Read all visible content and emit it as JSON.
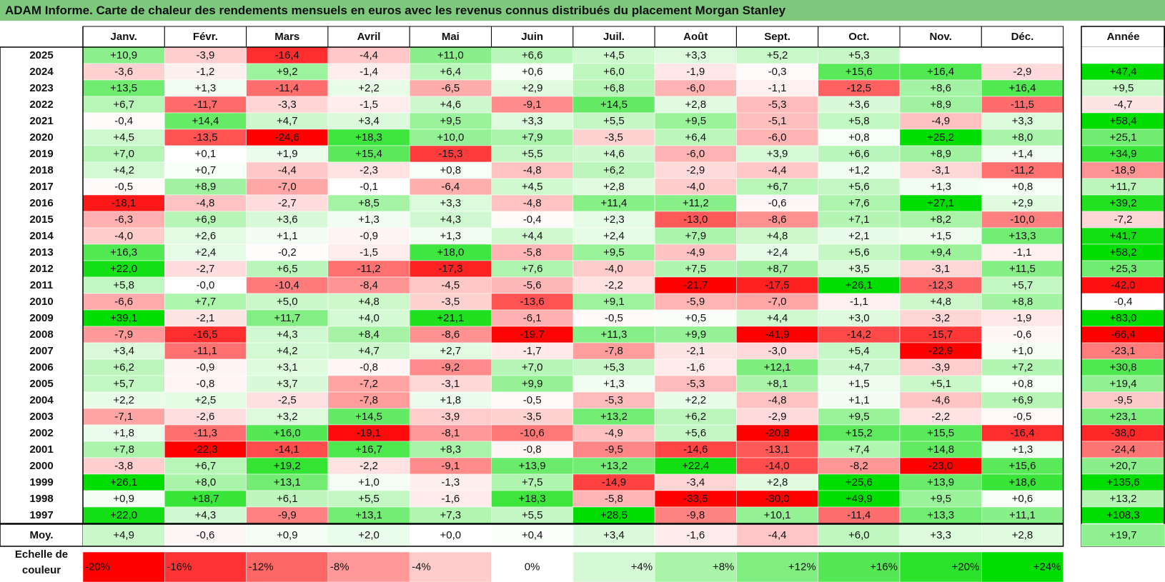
{
  "title": "ADAM Informe. Carte de chaleur des rendements mensuels en euros avec les revenus connus distribués du placement Morgan Stanley",
  "chart_data": {
    "type": "heatmap",
    "title": "ADAM Informe. Carte de chaleur des rendements mensuels en euros avec les revenus connus distribués du placement Morgan Stanley",
    "columns": [
      "Janv.",
      "Févr.",
      "Mars",
      "Avril",
      "Mai",
      "Juin",
      "Juil.",
      "Août",
      "Sept.",
      "Oct.",
      "Nov.",
      "Déc."
    ],
    "year_column_label": "Année",
    "rows": [
      {
        "year": "2025",
        "values": [
          "+10,9",
          "-3,9",
          "-16,4",
          "-4,4",
          "+11,0",
          "+6,6",
          "+4,5",
          "+3,3",
          "+5,2",
          "+5,3",
          "",
          ""
        ],
        "annual": ""
      },
      {
        "year": "2024",
        "values": [
          "-3,6",
          "-1,2",
          "+9,2",
          "-1,4",
          "+6,4",
          "+0,6",
          "+6,0",
          "-1,9",
          "-0,3",
          "+15,6",
          "+16,4",
          "-2,9"
        ],
        "annual": "+47,4"
      },
      {
        "year": "2023",
        "values": [
          "+13,5",
          "+1,3",
          "-11,4",
          "+2,2",
          "-6,5",
          "+2,9",
          "+6,8",
          "-6,0",
          "-1,1",
          "-12,5",
          "+8,6",
          "+16,4"
        ],
        "annual": "+9,5"
      },
      {
        "year": "2022",
        "values": [
          "+6,7",
          "-11,7",
          "-3,3",
          "-1,5",
          "+4,6",
          "-9,1",
          "+14,5",
          "+2,8",
          "-5,3",
          "+3,6",
          "+8,9",
          "-11,5"
        ],
        "annual": "-4,7"
      },
      {
        "year": "2021",
        "values": [
          "-0,4",
          "+14,4",
          "+4,7",
          "+3,4",
          "+9,5",
          "+3,3",
          "+5,5",
          "+9,5",
          "-5,1",
          "+5,8",
          "-4,9",
          "+3,3"
        ],
        "annual": "+58,4"
      },
      {
        "year": "2020",
        "values": [
          "+4,5",
          "-13,5",
          "-24,6",
          "+18,3",
          "+10,0",
          "+7,9",
          "-3,5",
          "+6,4",
          "-6,0",
          "+0,8",
          "+25,2",
          "+8,0"
        ],
        "annual": "+25,1"
      },
      {
        "year": "2019",
        "values": [
          "+7,0",
          "+0,1",
          "+1,9",
          "+15,4",
          "-15,3",
          "+5,5",
          "+4,6",
          "-6,0",
          "+3,9",
          "+6,6",
          "+8,9",
          "+1,4"
        ],
        "annual": "+34,9"
      },
      {
        "year": "2018",
        "values": [
          "+4,2",
          "+0,7",
          "-4,4",
          "-2,3",
          "+0,8",
          "-4,8",
          "+6,2",
          "-2,9",
          "-4,4",
          "+1,2",
          "-3,1",
          "-11,2"
        ],
        "annual": "-18,9"
      },
      {
        "year": "2017",
        "values": [
          "-0,5",
          "+8,9",
          "-7,0",
          "-0,1",
          "-6,4",
          "+4,5",
          "+2,8",
          "-4,0",
          "+6,7",
          "+5,6",
          "+1,3",
          "+0,8"
        ],
        "annual": "+11,7"
      },
      {
        "year": "2016",
        "values": [
          "-18,1",
          "-4,8",
          "-2,7",
          "+8,5",
          "+3,3",
          "-4,8",
          "+11,4",
          "+11,2",
          "-0,6",
          "+7,6",
          "+27,1",
          "+2,9"
        ],
        "annual": "+39,2"
      },
      {
        "year": "2015",
        "values": [
          "-6,3",
          "+6,9",
          "+3,6",
          "+1,3",
          "+4,3",
          "-0,4",
          "+2,3",
          "-13,0",
          "-8,6",
          "+7,1",
          "+8,2",
          "-10,0"
        ],
        "annual": "-7,2"
      },
      {
        "year": "2014",
        "values": [
          "-4,0",
          "+2,6",
          "+1,1",
          "-0,9",
          "+1,3",
          "+4,4",
          "+2,4",
          "+7,9",
          "+4,8",
          "+2,1",
          "+1,5",
          "+13,3"
        ],
        "annual": "+41,7"
      },
      {
        "year": "2013",
        "values": [
          "+16,3",
          "+2,4",
          "-0,2",
          "-1,5",
          "+18,0",
          "-5,8",
          "+9,5",
          "-4,9",
          "+2,4",
          "+5,6",
          "+9,4",
          "-1,1"
        ],
        "annual": "+58,2"
      },
      {
        "year": "2012",
        "values": [
          "+22,0",
          "-2,7",
          "+6,5",
          "-11,2",
          "-17,3",
          "+7,6",
          "-4,0",
          "+7,5",
          "+8,7",
          "+3,5",
          "-3,1",
          "+11,5"
        ],
        "annual": "+25,3"
      },
      {
        "year": "2011",
        "values": [
          "+5,8",
          "-0,0",
          "-10,4",
          "-8,4",
          "-4,5",
          "-5,6",
          "-2,2",
          "-21,7",
          "-17,5",
          "+26,1",
          "-12,3",
          "+5,7"
        ],
        "annual": "-42,0"
      },
      {
        "year": "2010",
        "values": [
          "-6,6",
          "+7,7",
          "+5,0",
          "+4,8",
          "-3,5",
          "-13,6",
          "+9,1",
          "-5,9",
          "-7,0",
          "-1,1",
          "+4,8",
          "+8,8"
        ],
        "annual": "-0,4"
      },
      {
        "year": "2009",
        "values": [
          "+39,1",
          "-2,1",
          "+11,7",
          "+4,0",
          "+21,1",
          "-6,1",
          "-0,5",
          "+0,5",
          "+4,4",
          "+3,0",
          "-3,2",
          "-1,9"
        ],
        "annual": "+83,0"
      },
      {
        "year": "2008",
        "values": [
          "-7,9",
          "-16,5",
          "+4,3",
          "+8,4",
          "-8,6",
          "-19,7",
          "+11,3",
          "+9,9",
          "-41,9",
          "-14,2",
          "-15,7",
          "-0,6"
        ],
        "annual": "-66,4"
      },
      {
        "year": "2007",
        "values": [
          "+3,4",
          "-11,1",
          "+4,2",
          "+4,7",
          "+2,7",
          "-1,7",
          "-7,8",
          "-2,1",
          "-3,0",
          "+5,4",
          "-22,9",
          "+1,0"
        ],
        "annual": "-23,1"
      },
      {
        "year": "2006",
        "values": [
          "+6,2",
          "-0,9",
          "+3,1",
          "-0,8",
          "-9,2",
          "+7,0",
          "+5,3",
          "-1,6",
          "+12,1",
          "+4,7",
          "-3,9",
          "+7,2"
        ],
        "annual": "+30,8"
      },
      {
        "year": "2005",
        "values": [
          "+5,7",
          "-0,8",
          "+3,7",
          "-7,2",
          "-3,1",
          "+9,9",
          "+1,3",
          "-5,3",
          "+8,1",
          "+1,5",
          "+5,1",
          "+0,8"
        ],
        "annual": "+19,4"
      },
      {
        "year": "2004",
        "values": [
          "+2,2",
          "+2,5",
          "-2,5",
          "-7,8",
          "+1,8",
          "-0,5",
          "-5,3",
          "+2,2",
          "-4,8",
          "+1,1",
          "-4,6",
          "+6,9"
        ],
        "annual": "-9,5"
      },
      {
        "year": "2003",
        "values": [
          "-7,1",
          "-2,6",
          "+3,2",
          "+14,5",
          "-3,9",
          "-3,5",
          "+13,2",
          "+6,2",
          "-2,9",
          "+9,5",
          "-2,2",
          "-0,5"
        ],
        "annual": "+23,1"
      },
      {
        "year": "2002",
        "values": [
          "+1,8",
          "-11,3",
          "+16,0",
          "-19,1",
          "-8,1",
          "-10,6",
          "-4,9",
          "+5,6",
          "-20,8",
          "+15,2",
          "+15,5",
          "-16,4"
        ],
        "annual": "-38,0"
      },
      {
        "year": "2001",
        "values": [
          "+7,8",
          "-22,3",
          "-14,1",
          "+16,7",
          "+8,3",
          "-0,8",
          "-9,5",
          "-14,6",
          "-13,1",
          "+7,4",
          "+14,8",
          "+1,3"
        ],
        "annual": "-24,4"
      },
      {
        "year": "2000",
        "values": [
          "-3,8",
          "+6,7",
          "+19,2",
          "-2,2",
          "-9,1",
          "+13,9",
          "+13,2",
          "+22,4",
          "-14,0",
          "-8,2",
          "-23,0",
          "+15,6"
        ],
        "annual": "+20,7"
      },
      {
        "year": "1999",
        "values": [
          "+26,1",
          "+8,0",
          "+13,1",
          "+1,0",
          "-1,3",
          "+7,5",
          "-14,9",
          "-3,4",
          "+2,8",
          "+25,6",
          "+13,9",
          "+18,6"
        ],
        "annual": "+135,6"
      },
      {
        "year": "1998",
        "values": [
          "+0,9",
          "+18,7",
          "+6,1",
          "+5,5",
          "-1,6",
          "+18,3",
          "-5,8",
          "-33,5",
          "-30,0",
          "+49,9",
          "+9,5",
          "+0,6"
        ],
        "annual": "+13,2"
      },
      {
        "year": "1997",
        "values": [
          "+22,0",
          "+4,3",
          "-9,9",
          "+13,1",
          "+7,3",
          "+5,5",
          "+28,5",
          "-9,8",
          "+10,1",
          "-11,4",
          "+13,3",
          "+11,1"
        ],
        "annual": "+108,3"
      }
    ],
    "average_row": {
      "label": "Moy.",
      "values": [
        "+4,9",
        "-0,6",
        "+0,9",
        "+2,0",
        "+0,0",
        "+0,4",
        "+3,4",
        "-1,6",
        "-4,4",
        "+6,0",
        "+3,3",
        "+2,8"
      ],
      "annual": "+19,7"
    },
    "scale": {
      "label": "Echelle de couleur",
      "steps": [
        "-20%",
        "-16%",
        "-12%",
        "-8%",
        "-4%",
        "0%",
        "+4%",
        "+8%",
        "+12%",
        "+16%",
        "+20%",
        "+24%"
      ],
      "levels": [
        -20,
        -16,
        -12,
        -8,
        -4,
        0,
        4,
        8,
        12,
        16,
        20,
        24
      ]
    },
    "colors": {
      "negative": "#ff0000",
      "neutral": "#ffffff",
      "positive": "#00dd00",
      "title_bar": "#7dc87d"
    }
  }
}
